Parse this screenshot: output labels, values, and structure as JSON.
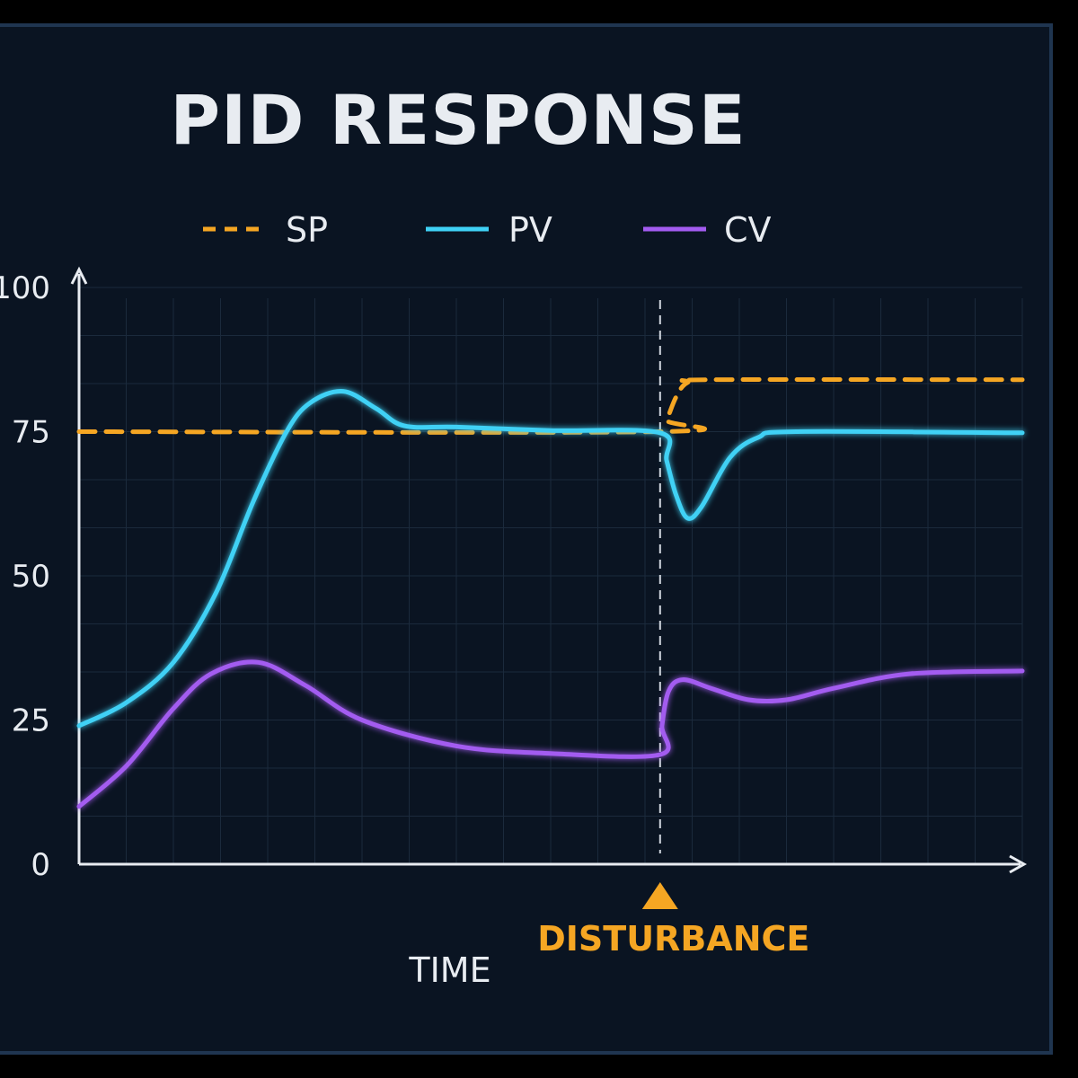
{
  "chart_data": {
    "type": "line",
    "title": "PID RESPONSE",
    "xlabel": "TIME",
    "ylabel": "",
    "ylim": [
      0,
      100
    ],
    "xlim": [
      0,
      100
    ],
    "yticks": [
      "0",
      "25",
      "50",
      "75",
      "100"
    ],
    "grid": true,
    "legend_position": "top",
    "annotations": [
      {
        "text": "DISTURBANCE",
        "x": 61.6,
        "marker": "triangle",
        "color": "#f5a623"
      }
    ],
    "series": [
      {
        "name": "SP",
        "color": "#f5a623",
        "style": "dashed",
        "points": [
          [
            0,
            75
          ],
          [
            61.6,
            75
          ],
          [
            62.3,
            77
          ],
          [
            63.3,
            81
          ],
          [
            64.5,
            83.5
          ],
          [
            67,
            84
          ],
          [
            100,
            84
          ]
        ]
      },
      {
        "name": "PV",
        "color": "#3fd1f5",
        "style": "solid",
        "points": [
          [
            0,
            24
          ],
          [
            5,
            28
          ],
          [
            10,
            35
          ],
          [
            14.5,
            47
          ],
          [
            18.5,
            63
          ],
          [
            22,
            75
          ],
          [
            24.5,
            80
          ],
          [
            28,
            82
          ],
          [
            31.5,
            79
          ],
          [
            34.5,
            76
          ],
          [
            40,
            75.8
          ],
          [
            50,
            75.2
          ],
          [
            61.6,
            74.8
          ],
          [
            62.3,
            70
          ],
          [
            63.3,
            64
          ],
          [
            64.5,
            60
          ],
          [
            66,
            62
          ],
          [
            69,
            70.5
          ],
          [
            72,
            74
          ],
          [
            76,
            75
          ],
          [
            100,
            74.8
          ]
        ]
      },
      {
        "name": "CV",
        "color": "#a35cf0",
        "style": "solid",
        "points": [
          [
            0,
            10
          ],
          [
            5,
            17
          ],
          [
            10,
            27
          ],
          [
            14,
            33
          ],
          [
            19,
            35
          ],
          [
            24,
            31
          ],
          [
            30,
            25
          ],
          [
            40,
            20.5
          ],
          [
            50,
            19.2
          ],
          [
            61.6,
            19
          ],
          [
            61.8,
            24
          ],
          [
            62.5,
            30
          ],
          [
            64,
            32
          ],
          [
            67,
            30.5
          ],
          [
            71,
            28.5
          ],
          [
            75,
            28.5
          ],
          [
            80,
            30.5
          ],
          [
            88,
            33
          ],
          [
            100,
            33.5
          ]
        ]
      }
    ]
  }
}
